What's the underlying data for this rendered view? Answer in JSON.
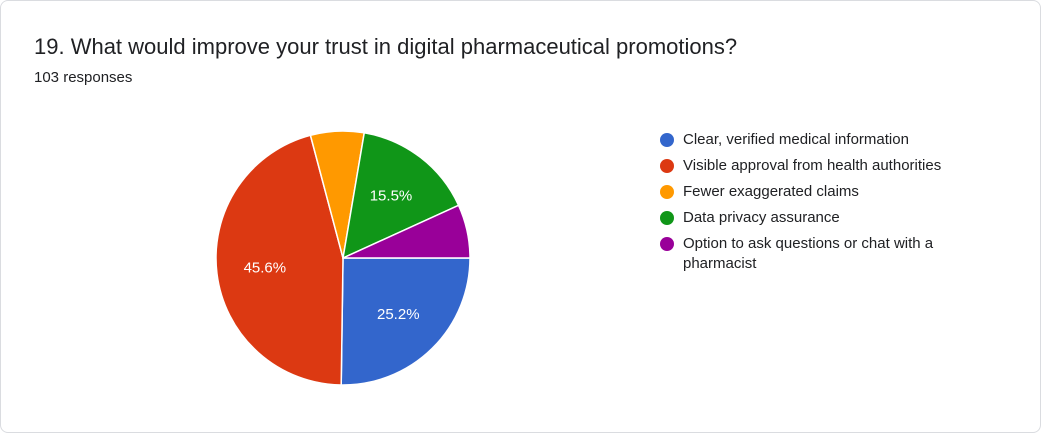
{
  "question": {
    "title": "19. What would improve your trust in digital pharmaceutical promotions?",
    "responses": "103 responses"
  },
  "chart_data": {
    "type": "pie",
    "categories": [
      "Clear, verified medical information",
      "Visible approval from health authorities",
      "Fewer exaggerated claims",
      "Data privacy assurance",
      "Option to ask questions or chat with a pharmacist"
    ],
    "values": [
      25.2,
      45.6,
      6.8,
      15.5,
      6.8
    ],
    "value_labels": [
      "25.2%",
      "45.6%",
      "",
      "15.5%",
      ""
    ],
    "colors": [
      "#3366cc",
      "#dc3912",
      "#ff9900",
      "#109618",
      "#990099"
    ],
    "start_angle_deg": 90,
    "direction": "clockwise",
    "legend_position": "right"
  }
}
